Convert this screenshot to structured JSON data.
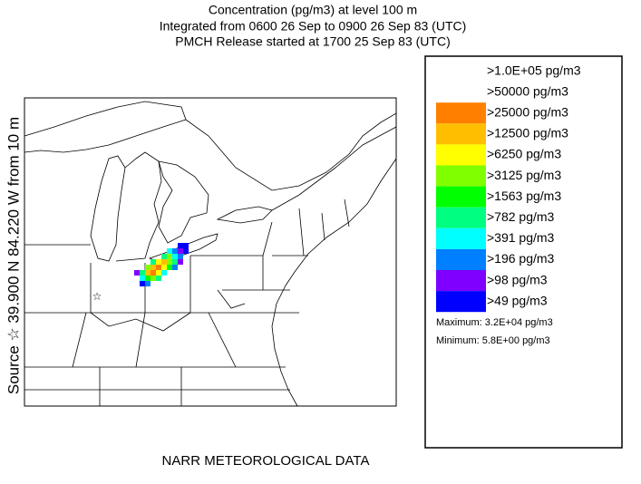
{
  "header": {
    "title_lines": [
      "Concentration  (pg/m3) at level   100 m",
      "Integrated from 0600 26 Sep to 0900 26 Sep 83 (UTC)",
      "PMCH Release started at 1700 25 Sep 83 (UTC)"
    ]
  },
  "side_label": "Source ☆ 39.900  N  84.220  W    from    10 m",
  "legend": {
    "entries": [
      {
        "label": ">1.0E+05 pg/m3",
        "color": null
      },
      {
        "label": ">50000 pg/m3",
        "color": null
      },
      {
        "label": ">25000 pg/m3",
        "color": "#ff7f00"
      },
      {
        "label": ">12500 pg/m3",
        "color": "#ffbf00"
      },
      {
        "label": ">6250 pg/m3",
        "color": "#ffff00"
      },
      {
        "label": ">3125 pg/m3",
        "color": "#80ff00"
      },
      {
        "label": ">1563 pg/m3",
        "color": "#00ff00"
      },
      {
        "label": ">782 pg/m3",
        "color": "#00ff80"
      },
      {
        "label": ">391 pg/m3",
        "color": "#00ffff"
      },
      {
        "label": ">196 pg/m3",
        "color": "#0080ff"
      },
      {
        "label": ">98 pg/m3",
        "color": "#8000ff"
      },
      {
        "label": ">49 pg/m3",
        "color": "#0000ff"
      }
    ],
    "maximum": "Maximum: 3.2E+04 pg/m3",
    "minimum": "Minimum: 5.8E+00 pg/m3"
  },
  "footer": "NARR METEOROLOGICAL DATA"
}
